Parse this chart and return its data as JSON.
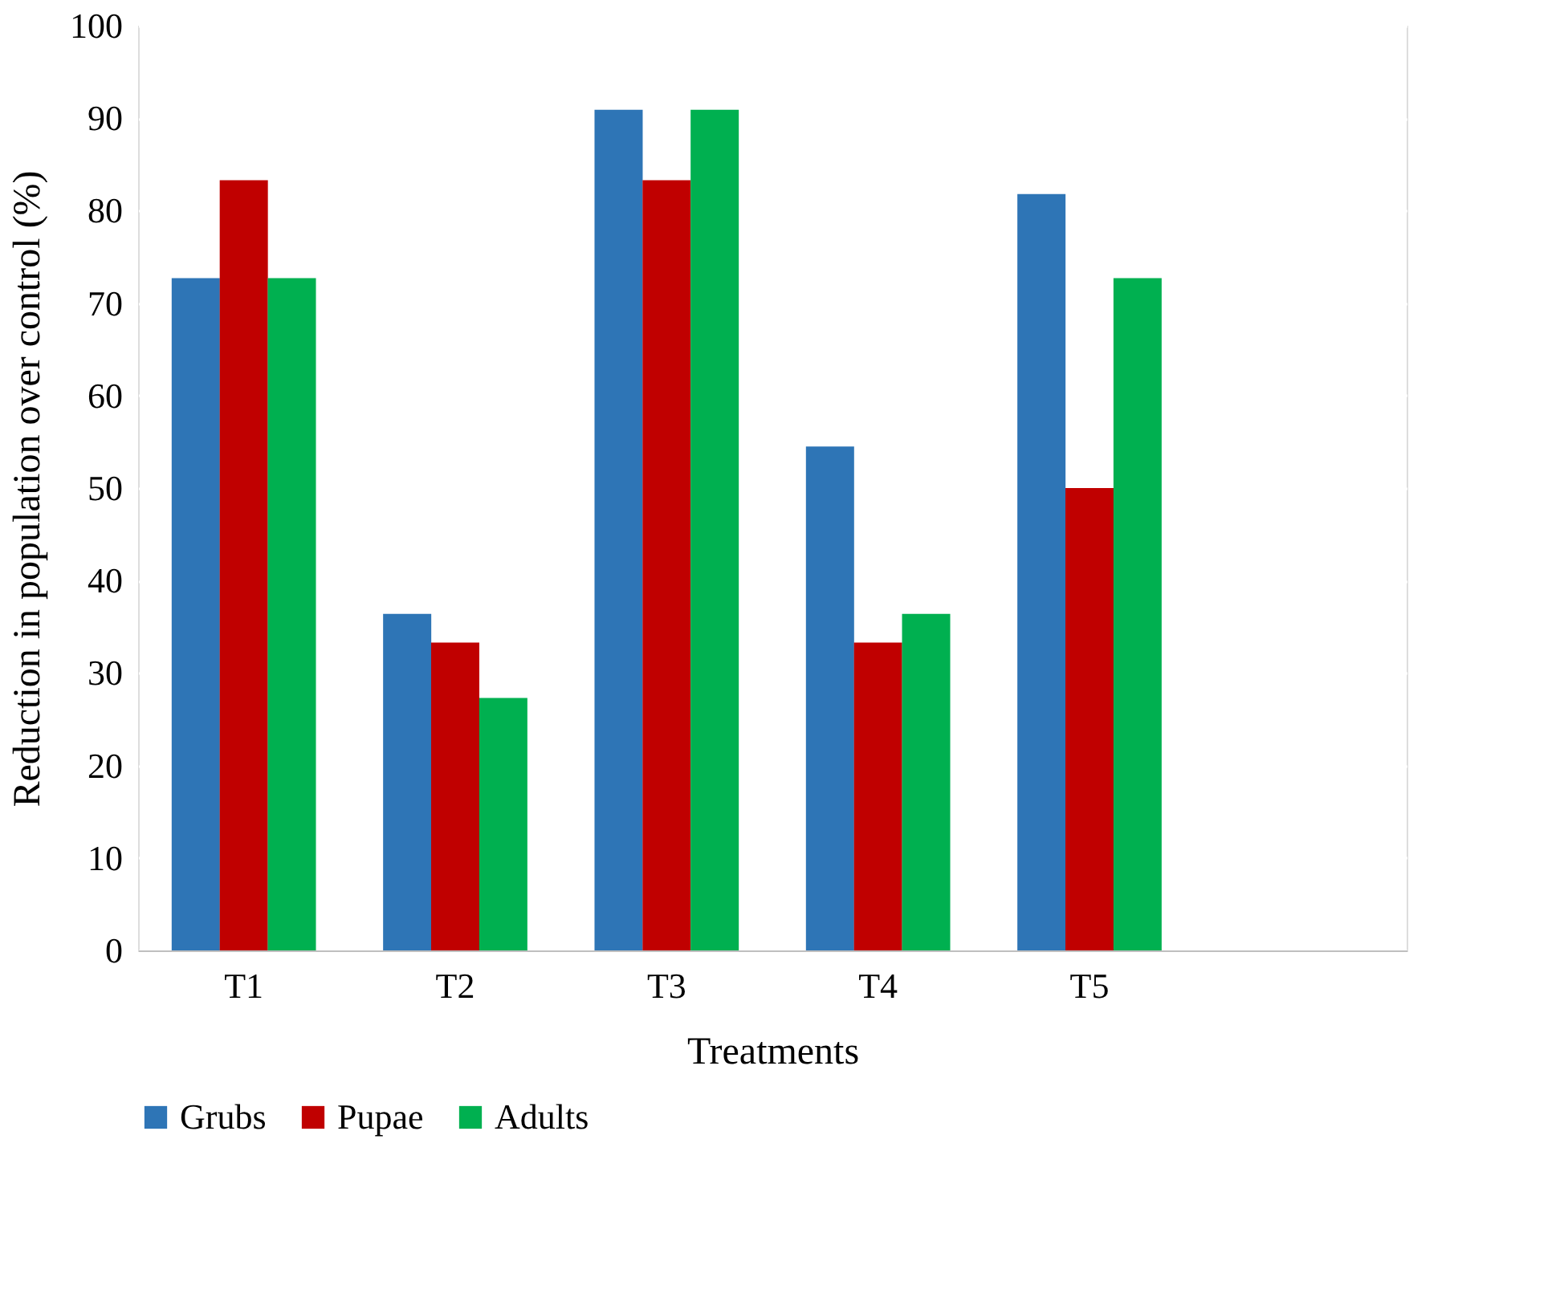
{
  "chart_data": {
    "type": "bar",
    "xlabel": "Treatments",
    "ylabel": "Reduction in population over control (%)",
    "categories": [
      "T1",
      "T2",
      "T3",
      "T4",
      "T5",
      null
    ],
    "series": [
      {
        "name": "Grubs",
        "color": "#2e75b6",
        "values": [
          72.7,
          36.4,
          90.9,
          54.5,
          81.8,
          null
        ]
      },
      {
        "name": "Pupae",
        "color": "#c00000",
        "values": [
          83.3,
          33.3,
          83.3,
          33.3,
          50.0,
          null
        ]
      },
      {
        "name": "Adults",
        "color": "#00b050",
        "values": [
          72.7,
          27.3,
          90.9,
          36.4,
          72.7,
          null
        ]
      }
    ],
    "ylim": [
      0,
      100
    ],
    "yticks": [
      0,
      10,
      20,
      30,
      40,
      50,
      60,
      70,
      80,
      90,
      100
    ],
    "grid": "y",
    "legend": "bottom"
  }
}
